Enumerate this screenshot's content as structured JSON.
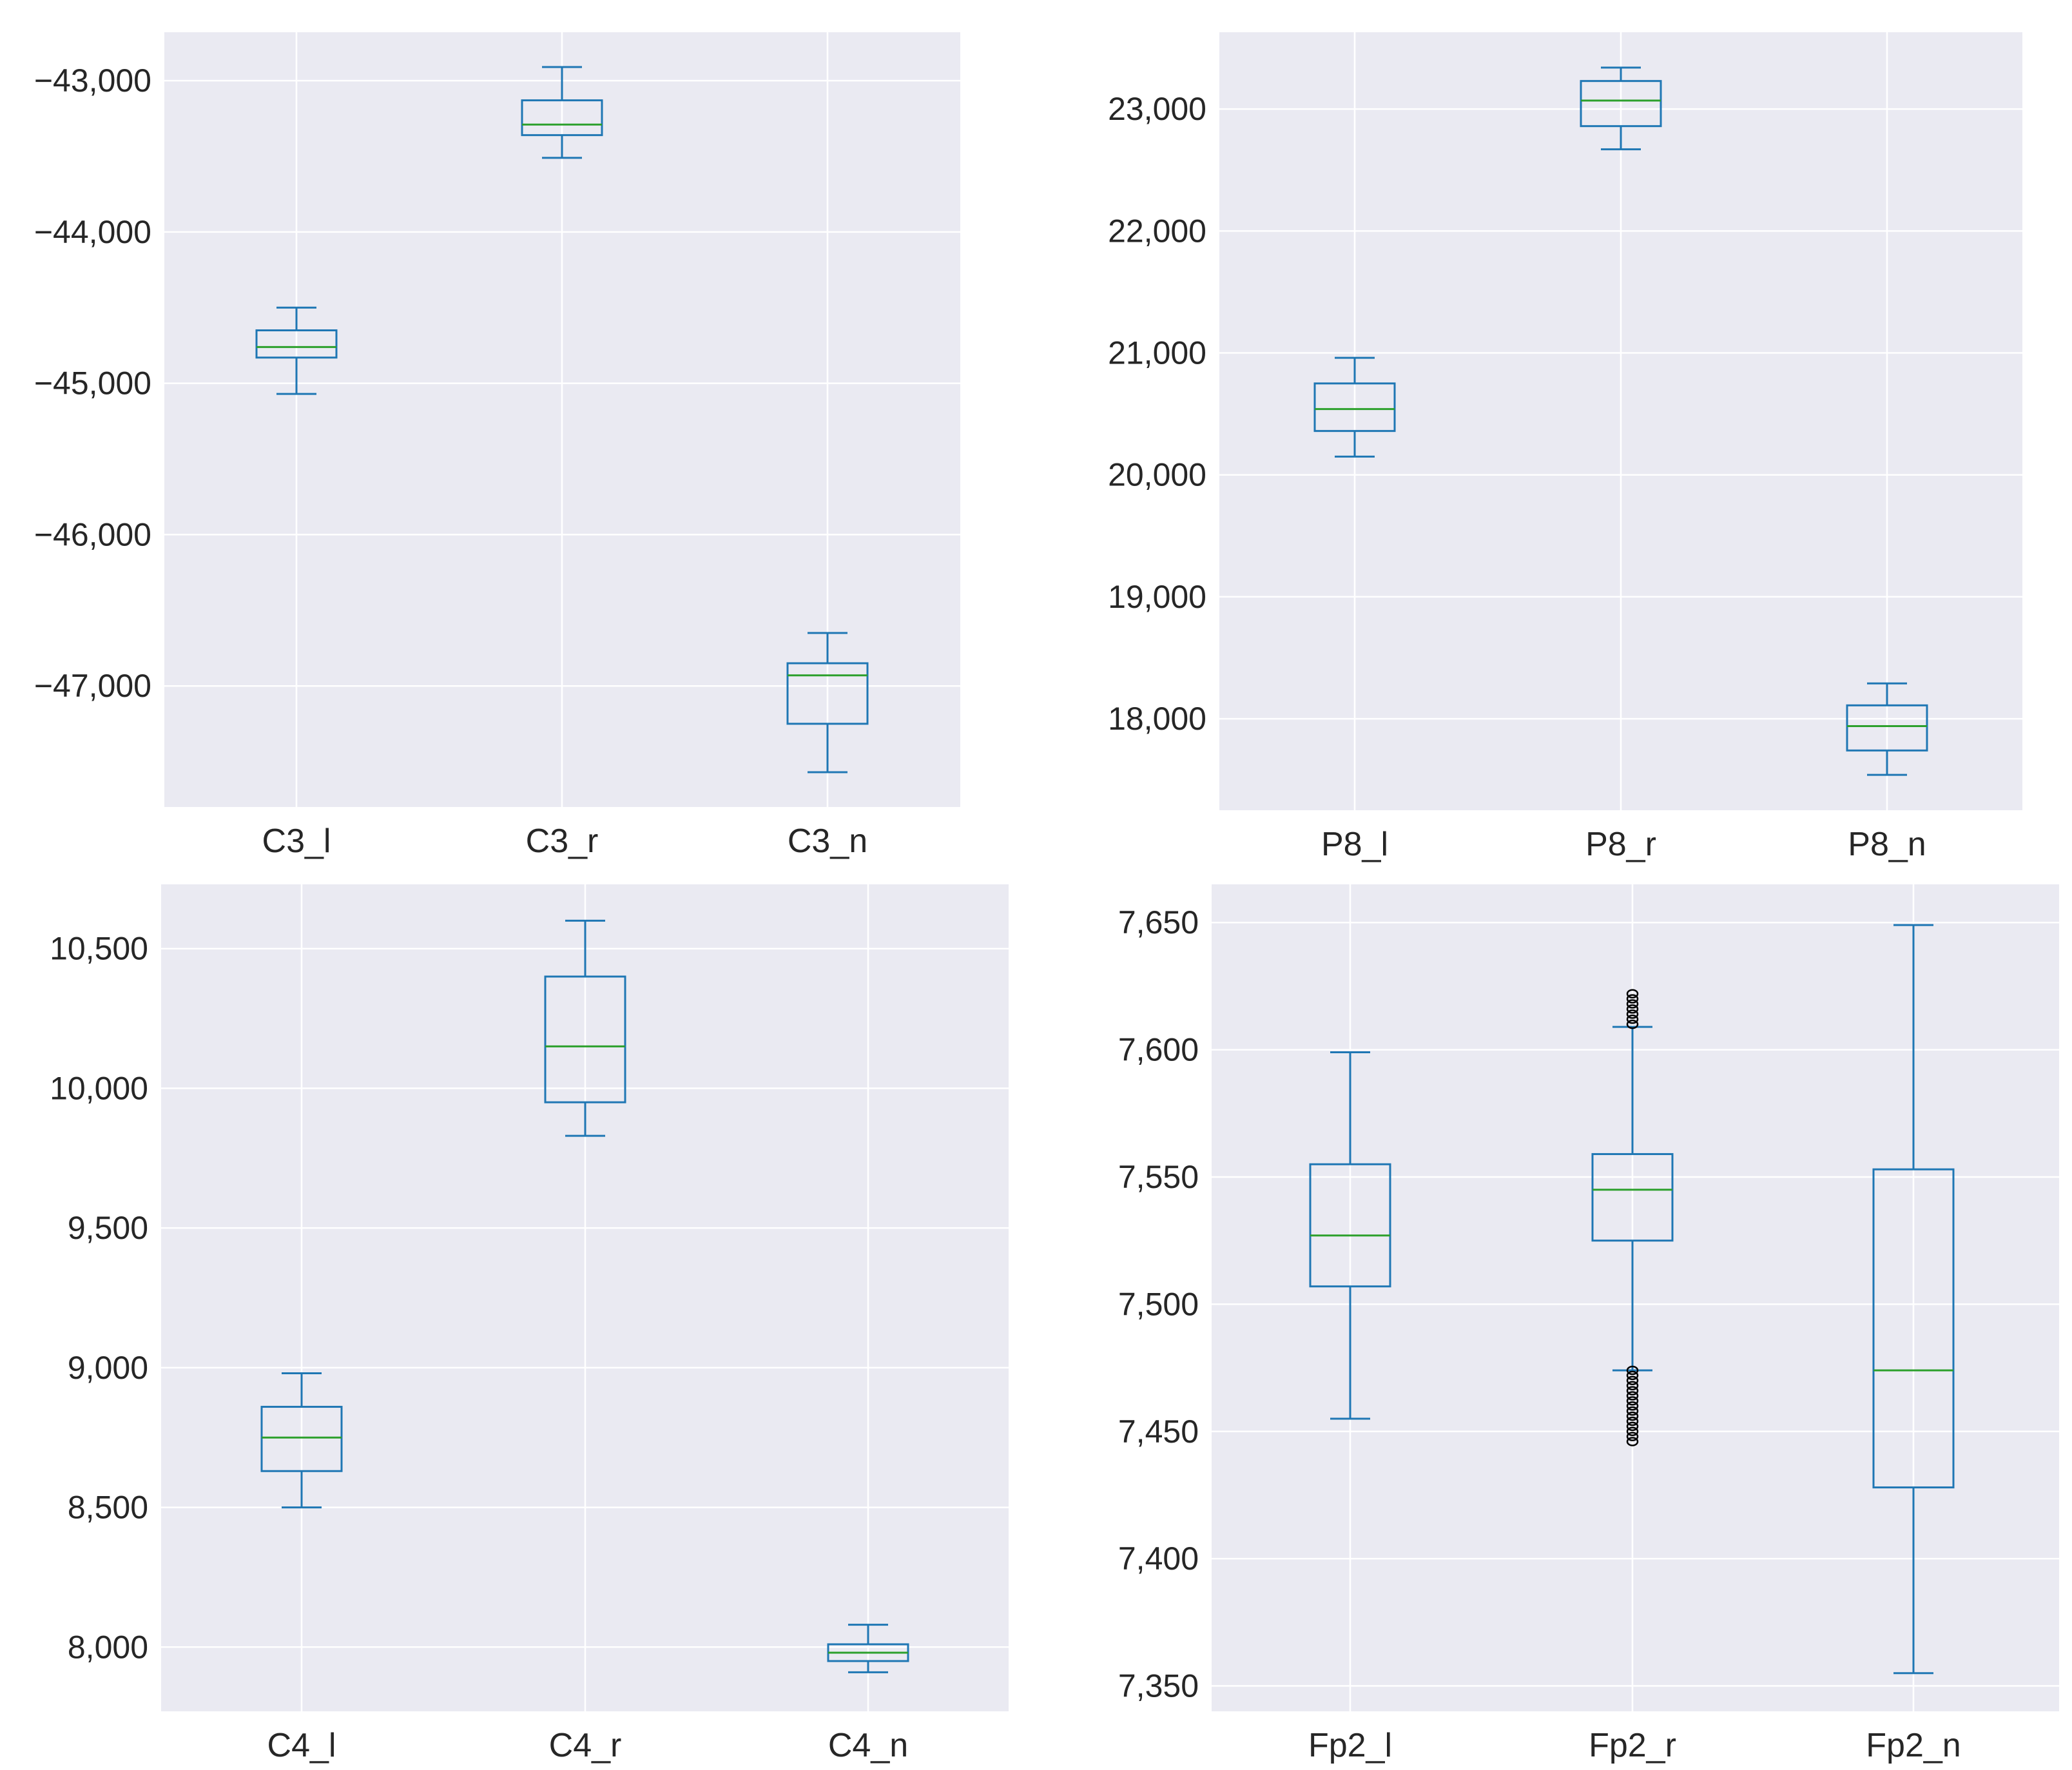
{
  "chart_data": [
    {
      "type": "box",
      "title": "",
      "ylim": [
        -47800,
        -42680
      ],
      "yticks": [
        -47000,
        -46000,
        -45000,
        -44000,
        -43000
      ],
      "ytick_labels": [
        "−47,000",
        "−46,000",
        "−45,000",
        "−44,000",
        "−43,000"
      ],
      "categories": [
        "C3_l",
        "C3_r",
        "C3_n"
      ],
      "boxes": [
        {
          "name": "C3_l",
          "whislo": -45070,
          "q1": -44830,
          "med": -44760,
          "q3": -44650,
          "whishi": -44500,
          "fliers": []
        },
        {
          "name": "C3_r",
          "whislo": -43510,
          "q1": -43360,
          "med": -43290,
          "q3": -43130,
          "whishi": -42910,
          "fliers": []
        },
        {
          "name": "C3_n",
          "whislo": -47570,
          "q1": -47250,
          "med": -46930,
          "q3": -46850,
          "whishi": -46650,
          "fliers": []
        }
      ]
    },
    {
      "type": "box",
      "title": "",
      "ylim": [
        17250,
        23630
      ],
      "yticks": [
        18000,
        19000,
        20000,
        21000,
        22000,
        23000
      ],
      "ytick_labels": [
        "18,000",
        "19,000",
        "20,000",
        "21,000",
        "22,000",
        "23,000"
      ],
      "categories": [
        "P8_l",
        "P8_r",
        "P8_n"
      ],
      "boxes": [
        {
          "name": "P8_l",
          "whislo": 20150,
          "q1": 20360,
          "med": 20540,
          "q3": 20750,
          "whishi": 20960,
          "fliers": []
        },
        {
          "name": "P8_r",
          "whislo": 22670,
          "q1": 22860,
          "med": 23070,
          "q3": 23230,
          "whishi": 23340,
          "fliers": []
        },
        {
          "name": "P8_n",
          "whislo": 17540,
          "q1": 17740,
          "med": 17940,
          "q3": 18110,
          "whishi": 18290,
          "fliers": []
        }
      ]
    },
    {
      "type": "box",
      "title": "",
      "ylim": [
        7770,
        10730
      ],
      "yticks": [
        8000,
        8500,
        9000,
        9500,
        10000,
        10500
      ],
      "ytick_labels": [
        "8,000",
        "8,500",
        "9,000",
        "9,500",
        "10,000",
        "10,500"
      ],
      "categories": [
        "C4_l",
        "C4_r",
        "C4_n"
      ],
      "boxes": [
        {
          "name": "C4_l",
          "whislo": 8500,
          "q1": 8630,
          "med": 8750,
          "q3": 8860,
          "whishi": 8980,
          "fliers": []
        },
        {
          "name": "C4_r",
          "whislo": 9830,
          "q1": 9950,
          "med": 10150,
          "q3": 10400,
          "whishi": 10600,
          "fliers": []
        },
        {
          "name": "C4_n",
          "whislo": 7910,
          "q1": 7950,
          "med": 7980,
          "q3": 8010,
          "whishi": 8080,
          "fliers": []
        }
      ]
    },
    {
      "type": "box",
      "title": "",
      "ylim": [
        7340,
        7665
      ],
      "yticks": [
        7350,
        7400,
        7450,
        7500,
        7550,
        7600,
        7650
      ],
      "ytick_labels": [
        "7,350",
        "7,400",
        "7,450",
        "7,500",
        "7,550",
        "7,600",
        "7,650"
      ],
      "categories": [
        "Fp2_l",
        "Fp2_r",
        "Fp2_n"
      ],
      "boxes": [
        {
          "name": "Fp2_l",
          "whislo": 7455,
          "q1": 7507,
          "med": 7527,
          "q3": 7555,
          "whishi": 7599,
          "fliers": []
        },
        {
          "name": "Fp2_r",
          "whislo": 7474,
          "q1": 7525,
          "med": 7545,
          "q3": 7559,
          "whishi": 7609,
          "fliers": [
            7610,
            7612,
            7614,
            7616,
            7618,
            7620,
            7622,
            7446,
            7448,
            7450,
            7452,
            7454,
            7456,
            7458,
            7460,
            7462,
            7464,
            7466,
            7468,
            7470,
            7472,
            7474
          ]
        },
        {
          "name": "Fp2_n",
          "whislo": 7355,
          "q1": 7428,
          "med": 7474,
          "q3": 7553,
          "whishi": 7649,
          "fliers": []
        }
      ]
    }
  ],
  "colors": {
    "box": "#1f77b4",
    "median": "#2ca02c",
    "plot_bg": "#eaeaf2",
    "grid": "#ffffff",
    "flier": "#000000",
    "text": "#262626"
  }
}
